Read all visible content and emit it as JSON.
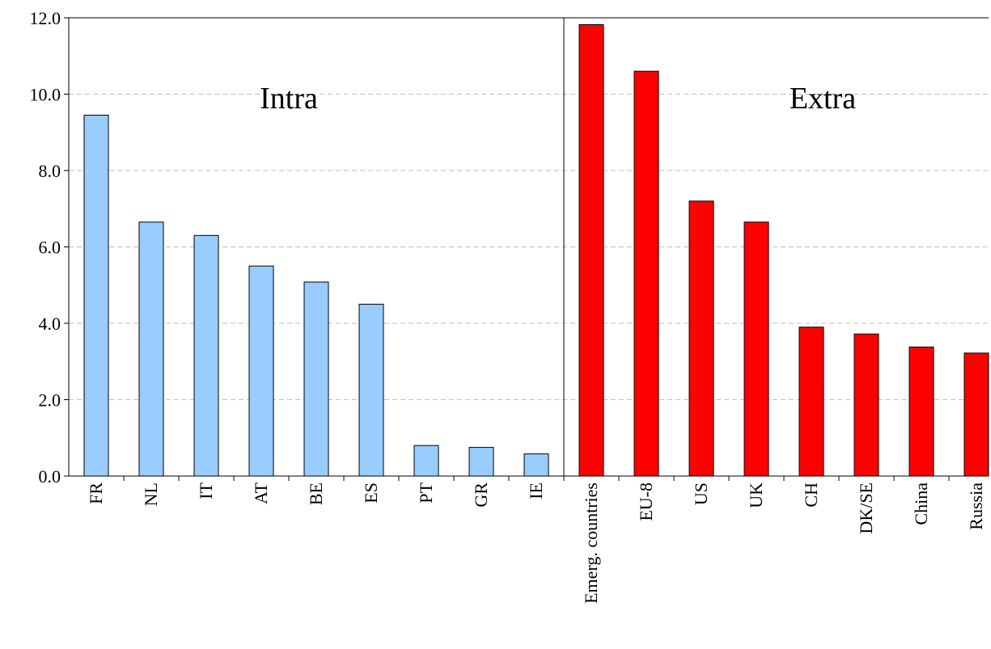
{
  "chart_data": {
    "type": "bar",
    "ylim": [
      0,
      12
    ],
    "yticks": [
      "0.0",
      "2.0",
      "4.0",
      "6.0",
      "8.0",
      "10.0",
      "12.0"
    ],
    "grid": true,
    "groups": [
      {
        "label": "Intra",
        "color": "#99CCFF",
        "categories": [
          "FR",
          "NL",
          "IT",
          "AT",
          "BE",
          "ES",
          "PT",
          "GR",
          "IE"
        ],
        "values": [
          9.45,
          6.65,
          6.3,
          5.5,
          5.08,
          4.5,
          0.8,
          0.75,
          0.58
        ]
      },
      {
        "label": "Extra",
        "color": "#FF0000",
        "categories": [
          "Emerg. countries",
          "EU-8",
          "US",
          "UK",
          "CH",
          "DK/SE",
          "China",
          "Russia"
        ],
        "values": [
          11.82,
          10.6,
          7.2,
          6.65,
          3.9,
          3.72,
          3.38,
          3.22
        ]
      }
    ]
  }
}
